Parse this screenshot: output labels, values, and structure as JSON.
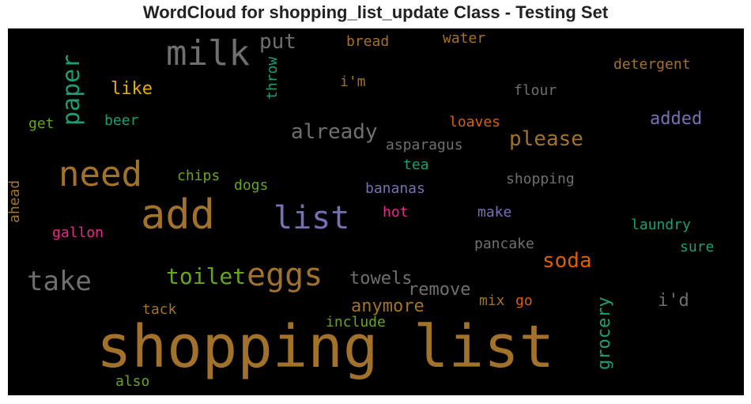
{
  "title": "WordCloud for shopping_list_update Class - Testing Set",
  "chart_data": {
    "type": "wordcloud",
    "background": "#000000",
    "words": [
      {
        "text": "shopping list",
        "color": "#a2722a"
      },
      {
        "text": "add",
        "color": "#a2722a"
      },
      {
        "text": "need",
        "color": "#a2722a"
      },
      {
        "text": "milk",
        "color": "#6f6f6f"
      },
      {
        "text": "list",
        "color": "#7570b3"
      },
      {
        "text": "eggs",
        "color": "#a2722a"
      },
      {
        "text": "take",
        "color": "#6f6f6f"
      },
      {
        "text": "paper",
        "color": "#1b9e77"
      },
      {
        "text": "toilet",
        "color": "#66a61e"
      },
      {
        "text": "soda",
        "color": "#d95f02"
      },
      {
        "text": "already",
        "color": "#6f6f6f"
      },
      {
        "text": "please",
        "color": "#a2722a"
      },
      {
        "text": "put",
        "color": "#6f6f6f"
      },
      {
        "text": "grocery",
        "color": "#1b9e77"
      },
      {
        "text": "towels",
        "color": "#6f6f6f"
      },
      {
        "text": "remove",
        "color": "#6f6f6f"
      },
      {
        "text": "anymore",
        "color": "#a2722a"
      },
      {
        "text": "i'd",
        "color": "#6f6f6f"
      },
      {
        "text": "added",
        "color": "#7570b3"
      },
      {
        "text": "like",
        "color": "#e6ab02"
      },
      {
        "text": "throw",
        "color": "#1b9e77"
      },
      {
        "text": "bread",
        "color": "#a2722a"
      },
      {
        "text": "water",
        "color": "#a2722a"
      },
      {
        "text": "detergent",
        "color": "#a2722a"
      },
      {
        "text": "i'm",
        "color": "#a2722a"
      },
      {
        "text": "flour",
        "color": "#6f6f6f"
      },
      {
        "text": "get",
        "color": "#66a61e"
      },
      {
        "text": "beer",
        "color": "#1b9e77"
      },
      {
        "text": "loaves",
        "color": "#d95f02"
      },
      {
        "text": "asparagus",
        "color": "#6f6f6f"
      },
      {
        "text": "tea",
        "color": "#1b9e77"
      },
      {
        "text": "chips",
        "color": "#66a61e"
      },
      {
        "text": "dogs",
        "color": "#66a61e"
      },
      {
        "text": "bananas",
        "color": "#7570b3"
      },
      {
        "text": "shopping",
        "color": "#6f6f6f"
      },
      {
        "text": "ahead",
        "color": "#a2722a"
      },
      {
        "text": "hot",
        "color": "#e7298a"
      },
      {
        "text": "make",
        "color": "#7570b3"
      },
      {
        "text": "laundry",
        "color": "#1b9e77"
      },
      {
        "text": "gallon",
        "color": "#e7298a"
      },
      {
        "text": "pancake",
        "color": "#6f6f6f"
      },
      {
        "text": "sure",
        "color": "#1b9e77"
      },
      {
        "text": "tack",
        "color": "#a2722a"
      },
      {
        "text": "mix",
        "color": "#a2722a"
      },
      {
        "text": "go",
        "color": "#d95f02"
      },
      {
        "text": "include",
        "color": "#66a61e"
      },
      {
        "text": "also",
        "color": "#66a61e"
      }
    ]
  }
}
